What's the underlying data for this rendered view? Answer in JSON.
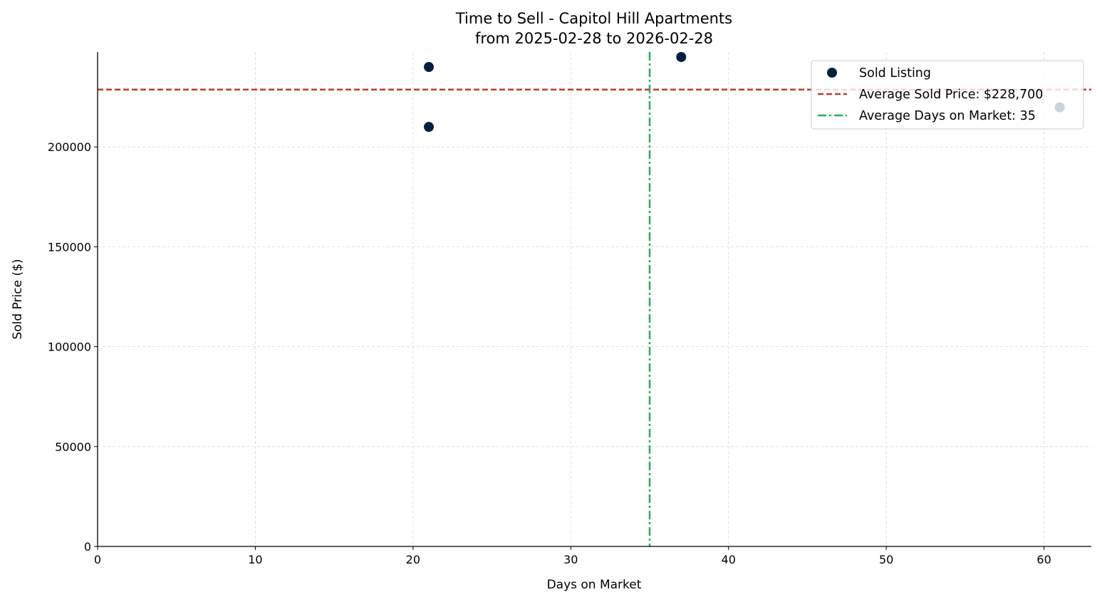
{
  "chart_data": {
    "type": "scatter",
    "title": "Time to Sell - Capitol Hill Apartments",
    "subtitle": "from 2025-02-28 to 2026-02-28",
    "xlabel": "Days on Market",
    "ylabel": "Sold Price ($)",
    "xlim": [
      0,
      63
    ],
    "ylim": [
      0,
      247500
    ],
    "xticks": [
      0,
      10,
      20,
      30,
      40,
      50,
      60
    ],
    "yticks": [
      0,
      50000,
      100000,
      150000,
      200000
    ],
    "grid": true,
    "legend_placement": "top-right",
    "series": [
      {
        "name": "Sold Listing",
        "color": "#041e42",
        "points": [
          {
            "x": 21,
            "y": 240000
          },
          {
            "x": 21,
            "y": 210000
          },
          {
            "x": 37,
            "y": 245000
          },
          {
            "x": 61,
            "y": 219800
          }
        ]
      }
    ],
    "reference_lines": [
      {
        "name": "Average Sold Price: $228,700",
        "orientation": "horizontal",
        "value": 228700,
        "style": "dashed",
        "color": "#c0392b"
      },
      {
        "name": "Average Days on Market: 35",
        "orientation": "vertical",
        "value": 35,
        "style": "dashdot",
        "color": "#27ae60"
      }
    ]
  }
}
